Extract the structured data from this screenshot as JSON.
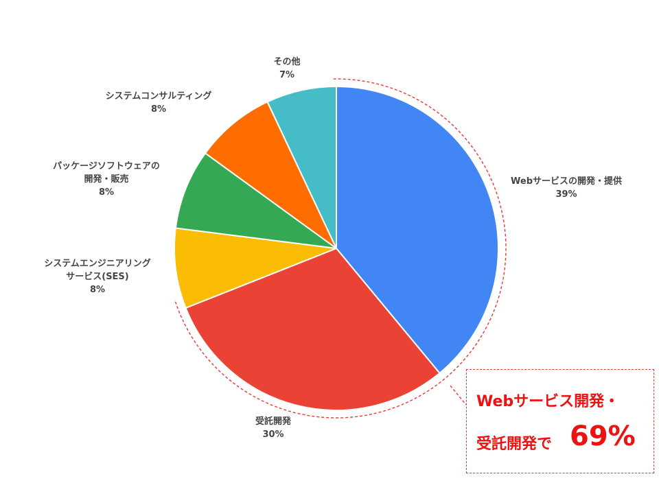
{
  "chart_data": {
    "type": "pie",
    "slices": [
      {
        "label_lines": [
          "Webサービスの開発・提供"
        ],
        "pct_label": "39%",
        "value": 39,
        "color": "#4285f4"
      },
      {
        "label_lines": [
          "受託開発"
        ],
        "pct_label": "30%",
        "value": 30,
        "color": "#ea4335"
      },
      {
        "label_lines": [
          "システムエンジニアリング",
          "サービス(SES)"
        ],
        "pct_label": "8%",
        "value": 8,
        "color": "#fbbc04"
      },
      {
        "label_lines": [
          "パッケージソフトウェアの",
          "開発・販売"
        ],
        "pct_label": "8%",
        "value": 8,
        "color": "#34a853"
      },
      {
        "label_lines": [
          "システムコンサルティング"
        ],
        "pct_label": "8%",
        "value": 8,
        "color": "#ff6d01"
      },
      {
        "label_lines": [
          "その他"
        ],
        "pct_label": "7%",
        "value": 7,
        "color": "#46bdc6"
      }
    ],
    "start_angle_deg": 0,
    "direction": "clockwise"
  },
  "callout": {
    "line1": "Webサービス開発・",
    "line2": "受託開発で",
    "highlight": "69%",
    "color": "#ee1111"
  }
}
